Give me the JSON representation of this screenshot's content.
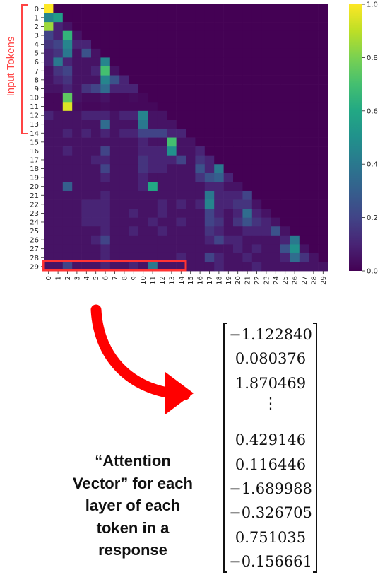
{
  "input_tokens_label": "Input Tokens",
  "caption": [
    "“Attention",
    "Vector” for each",
    "layer of each",
    "token in a",
    "response"
  ],
  "vector_values": [
    "−1.122840",
    "0.080376",
    "1.870469",
    "⋮",
    "0.429146",
    "0.116446",
    "−1.689988",
    "−0.326705",
    "0.751035",
    "−0.156661"
  ],
  "chart_data": {
    "type": "heatmap",
    "x_tick_labels": [
      "0",
      "1",
      "2",
      "3",
      "4",
      "5",
      "6",
      "7",
      "8",
      "9",
      "10",
      "11",
      "12",
      "13",
      "14",
      "15",
      "16",
      "17",
      "18",
      "19",
      "20",
      "21",
      "22",
      "23",
      "24",
      "25",
      "26",
      "27",
      "28",
      "29"
    ],
    "y_tick_labels": [
      "0",
      "1",
      "2",
      "3",
      "4",
      "5",
      "6",
      "7",
      "8",
      "9",
      "10",
      "11",
      "12",
      "13",
      "14",
      "15",
      "16",
      "17",
      "18",
      "19",
      "20",
      "21",
      "22",
      "23",
      "24",
      "25",
      "26",
      "27",
      "28",
      "29"
    ],
    "colorbar": {
      "colormap": "viridis",
      "range": [
        0.0,
        1.0
      ],
      "tick_labels": [
        "0.0",
        "0.2",
        "0.4",
        "0.6",
        "0.8",
        "1.0"
      ]
    },
    "input_token_rows": [
      0,
      14
    ],
    "highlighted_row": 29,
    "highlighted_columns": [
      0,
      14
    ],
    "values": [
      [
        1.0
      ],
      [
        0.45,
        0.55
      ],
      [
        0.85,
        0.1,
        0.05
      ],
      [
        0.2,
        0.1,
        0.65,
        0.05
      ],
      [
        0.15,
        0.2,
        0.45,
        0.1,
        0.1
      ],
      [
        0.1,
        0.15,
        0.4,
        0.05,
        0.25,
        0.05
      ],
      [
        0.1,
        0.4,
        0.1,
        0.05,
        0.05,
        0.05,
        0.45
      ],
      [
        0.05,
        0.15,
        0.2,
        0.05,
        0.05,
        0.1,
        0.7,
        0.05
      ],
      [
        0.05,
        0.1,
        0.15,
        0.05,
        0.05,
        0.05,
        0.45,
        0.25,
        0.1
      ],
      [
        0.05,
        0.05,
        0.1,
        0.05,
        0.15,
        0.2,
        0.35,
        0.1,
        0.1,
        0.1
      ],
      [
        0.02,
        0.02,
        0.75,
        0.05,
        0.03,
        0.03,
        0.05,
        0.02,
        0.02,
        0.03,
        0.02
      ],
      [
        0.02,
        0.02,
        0.95,
        0.03,
        0.02,
        0.02,
        0.03,
        0.02,
        0.02,
        0.02,
        0.02,
        0.02
      ],
      [
        0.1,
        0.05,
        0.05,
        0.05,
        0.1,
        0.1,
        0.1,
        0.05,
        0.1,
        0.1,
        0.45,
        0.05,
        0.05
      ],
      [
        0.05,
        0.05,
        0.05,
        0.05,
        0.05,
        0.05,
        0.35,
        0.05,
        0.05,
        0.05,
        0.4,
        0.05,
        0.05,
        0.05
      ],
      [
        0.05,
        0.05,
        0.1,
        0.05,
        0.1,
        0.05,
        0.1,
        0.05,
        0.1,
        0.1,
        0.2,
        0.2,
        0.2,
        0.1,
        0.1
      ],
      [
        0.05,
        0.05,
        0.05,
        0.05,
        0.05,
        0.05,
        0.05,
        0.05,
        0.05,
        0.05,
        0.1,
        0.05,
        0.05,
        0.7,
        0.05,
        0.05
      ],
      [
        0.05,
        0.05,
        0.1,
        0.05,
        0.05,
        0.05,
        0.2,
        0.05,
        0.05,
        0.05,
        0.1,
        0.1,
        0.1,
        0.5,
        0.05,
        0.05,
        0.1
      ],
      [
        0.05,
        0.05,
        0.05,
        0.05,
        0.05,
        0.1,
        0.1,
        0.05,
        0.05,
        0.05,
        0.15,
        0.1,
        0.1,
        0.1,
        0.2,
        0.05,
        0.15,
        0.1
      ],
      [
        0.05,
        0.05,
        0.05,
        0.05,
        0.05,
        0.05,
        0.2,
        0.05,
        0.05,
        0.05,
        0.15,
        0.1,
        0.1,
        0.05,
        0.05,
        0.05,
        0.25,
        0.1,
        0.4
      ],
      [
        0.05,
        0.05,
        0.05,
        0.05,
        0.05,
        0.05,
        0.1,
        0.05,
        0.05,
        0.05,
        0.1,
        0.05,
        0.05,
        0.05,
        0.05,
        0.05,
        0.15,
        0.25,
        0.3,
        0.1
      ],
      [
        0.05,
        0.05,
        0.3,
        0.05,
        0.05,
        0.05,
        0.05,
        0.05,
        0.05,
        0.05,
        0.1,
        0.6,
        0.05,
        0.05,
        0.05,
        0.05,
        0.05,
        0.1,
        0.1,
        0.05,
        0.05
      ],
      [
        0.05,
        0.05,
        0.05,
        0.05,
        0.05,
        0.05,
        0.1,
        0.05,
        0.05,
        0.05,
        0.05,
        0.05,
        0.05,
        0.05,
        0.05,
        0.05,
        0.05,
        0.4,
        0.1,
        0.1,
        0.1,
        0.2
      ],
      [
        0.05,
        0.05,
        0.05,
        0.05,
        0.1,
        0.1,
        0.1,
        0.05,
        0.05,
        0.05,
        0.05,
        0.05,
        0.1,
        0.05,
        0.1,
        0.05,
        0.1,
        0.45,
        0.1,
        0.1,
        0.15,
        0.15,
        0.05
      ],
      [
        0.05,
        0.05,
        0.05,
        0.05,
        0.1,
        0.1,
        0.1,
        0.05,
        0.05,
        0.1,
        0.05,
        0.05,
        0.1,
        0.05,
        0.05,
        0.05,
        0.05,
        0.2,
        0.1,
        0.05,
        0.1,
        0.35,
        0.1,
        0.05
      ],
      [
        0.05,
        0.05,
        0.05,
        0.05,
        0.1,
        0.1,
        0.1,
        0.05,
        0.05,
        0.05,
        0.05,
        0.1,
        0.05,
        0.05,
        0.1,
        0.05,
        0.05,
        0.2,
        0.15,
        0.05,
        0.15,
        0.25,
        0.15,
        0.1,
        0.05
      ],
      [
        0.05,
        0.05,
        0.05,
        0.05,
        0.05,
        0.05,
        0.1,
        0.05,
        0.05,
        0.1,
        0.05,
        0.05,
        0.1,
        0.05,
        0.05,
        0.05,
        0.05,
        0.15,
        0.1,
        0.05,
        0.05,
        0.1,
        0.1,
        0.1,
        0.25,
        0.05
      ],
      [
        0.05,
        0.05,
        0.05,
        0.05,
        0.05,
        0.1,
        0.2,
        0.05,
        0.05,
        0.05,
        0.05,
        0.05,
        0.05,
        0.05,
        0.05,
        0.05,
        0.05,
        0.1,
        0.2,
        0.1,
        0.1,
        0.05,
        0.05,
        0.05,
        0.05,
        0.1,
        0.4
      ],
      [
        0.05,
        0.05,
        0.05,
        0.05,
        0.05,
        0.05,
        0.1,
        0.05,
        0.05,
        0.05,
        0.05,
        0.05,
        0.05,
        0.05,
        0.05,
        0.05,
        0.05,
        0.05,
        0.05,
        0.05,
        0.1,
        0.05,
        0.1,
        0.05,
        0.05,
        0.25,
        0.5,
        0.05
      ],
      [
        0.05,
        0.05,
        0.05,
        0.05,
        0.05,
        0.05,
        0.1,
        0.05,
        0.05,
        0.05,
        0.05,
        0.05,
        0.05,
        0.05,
        0.1,
        0.05,
        0.05,
        0.2,
        0.1,
        0.05,
        0.05,
        0.1,
        0.05,
        0.05,
        0.05,
        0.1,
        0.35,
        0.15,
        0.05
      ],
      [
        0.05,
        0.05,
        0.2,
        0.05,
        0.05,
        0.05,
        0.1,
        0.05,
        0.05,
        0.1,
        0.05,
        0.4,
        0.05,
        0.05,
        0.05,
        0.05,
        0.05,
        0.05,
        0.1,
        0.05,
        0.05,
        0.05,
        0.1,
        0.05,
        0.05,
        0.05,
        0.05,
        0.05,
        0.05,
        0.05
      ]
    ]
  }
}
